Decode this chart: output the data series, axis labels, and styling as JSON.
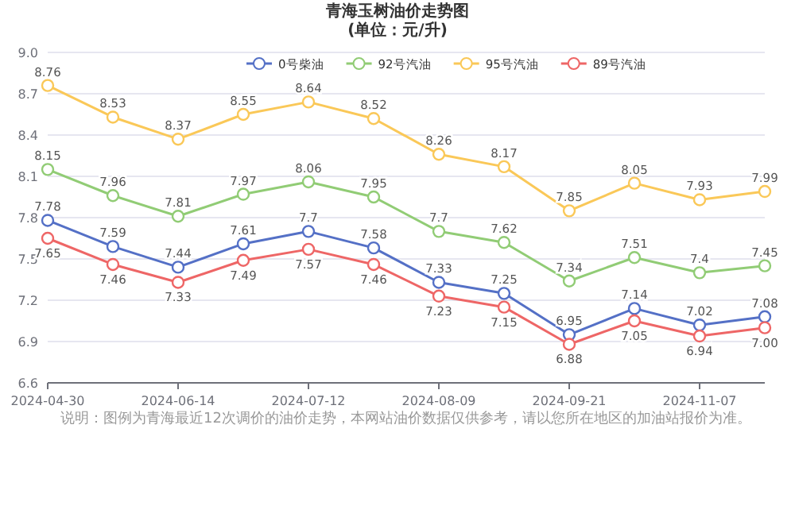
{
  "chart_data": {
    "type": "line",
    "title": "青海玉树油价走势图",
    "subtitle": "(单位：元/升)",
    "categories": [
      "2024-04-30",
      null,
      "2024-06-14",
      null,
      "2024-07-12",
      null,
      "2024-08-09",
      null,
      "2024-09-21",
      null,
      "2024-11-07",
      null
    ],
    "series": [
      {
        "name": "0号柴油",
        "color": "#5470c6",
        "values": [
          7.78,
          7.59,
          7.44,
          7.61,
          7.7,
          7.58,
          7.33,
          7.25,
          6.95,
          7.14,
          7.02,
          7.08
        ]
      },
      {
        "name": "92号汽油",
        "color": "#91cc75",
        "values": [
          8.15,
          7.96,
          7.81,
          7.97,
          8.06,
          7.95,
          7.7,
          7.62,
          7.34,
          7.51,
          7.4,
          7.45
        ]
      },
      {
        "name": "95号汽油",
        "color": "#fac858",
        "values": [
          8.76,
          8.53,
          8.37,
          8.55,
          8.64,
          8.52,
          8.26,
          8.17,
          7.85,
          8.05,
          7.93,
          7.99
        ]
      },
      {
        "name": "89号汽油",
        "color": "#ee6666",
        "values": [
          7.65,
          7.46,
          7.33,
          7.49,
          7.57,
          7.46,
          7.23,
          7.15,
          6.88,
          7.05,
          6.94,
          7.0
        ],
        "value_labels": [
          "7.65",
          "7.46",
          "7.33",
          "7.49",
          "7.57",
          "7.46",
          "7.23",
          "7.15",
          "6.88",
          "7.05",
          "6.94",
          "7.00"
        ]
      }
    ],
    "ylim": [
      6.6,
      9.0
    ],
    "yticks": [
      6.6,
      6.9,
      7.2,
      7.5,
      7.8,
      8.1,
      8.4,
      8.7,
      {
        "value": 9.0,
        "label": "9.0"
      }
    ],
    "grid": "y",
    "legend": "top",
    "marker": "circle",
    "line_style": "solid",
    "data_labels": true,
    "annotations": [
      "说明：图例为青海最近12次调价的油价走势，本网站油价数据仅供参考，请以您所在地区的加油站报价为准。"
    ]
  }
}
